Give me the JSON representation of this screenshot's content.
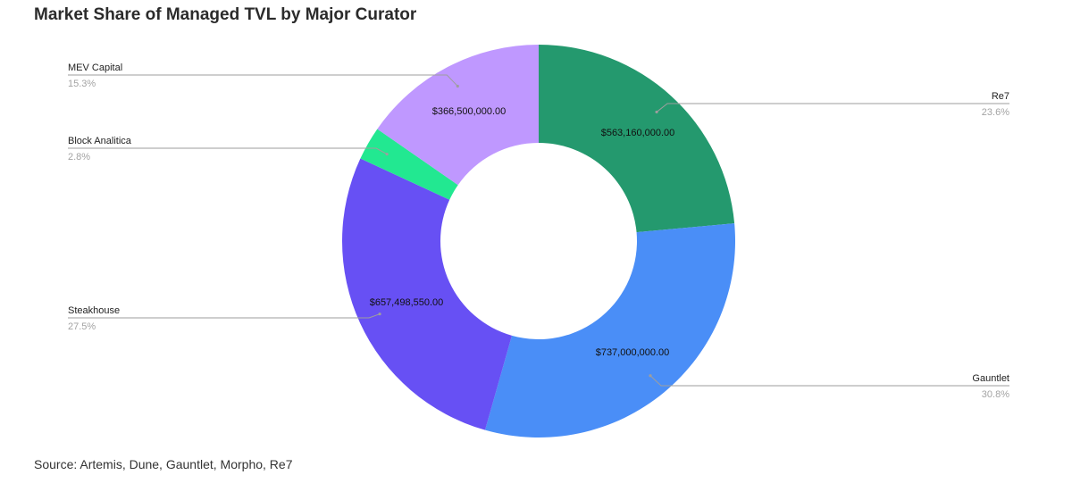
{
  "title": "Market Share of Managed TVL by Major Curator",
  "source": "Source: Artemis, Dune, Gauntlet, Morpho, Re7",
  "chart_data": {
    "type": "pie",
    "donut": true,
    "title": "Market Share of Managed TVL by Major Curator",
    "legend_placement": "callouts",
    "series": [
      {
        "name": "Re7",
        "value": 563160000.0,
        "value_label": "$563,160,000.00",
        "percent": 23.6,
        "percent_label": "23.6%",
        "color": "#24996e"
      },
      {
        "name": "Gauntlet",
        "value": 737000000.0,
        "value_label": "$737,000,000.00",
        "percent": 30.8,
        "percent_label": "30.8%",
        "color": "#4a8ef7"
      },
      {
        "name": "Steakhouse",
        "value": 657498550.0,
        "value_label": "$657,498,550.00",
        "percent": 27.5,
        "percent_label": "27.5%",
        "color": "#6750f4"
      },
      {
        "name": "Block Analitica",
        "value": 66000000.0,
        "value_label": "",
        "percent": 2.8,
        "percent_label": "2.8%",
        "color": "#22e891"
      },
      {
        "name": "MEV Capital",
        "value": 366500000.0,
        "value_label": "$366,500,000.00",
        "percent": 15.3,
        "percent_label": "15.3%",
        "color": "#bf98ff"
      }
    ]
  }
}
